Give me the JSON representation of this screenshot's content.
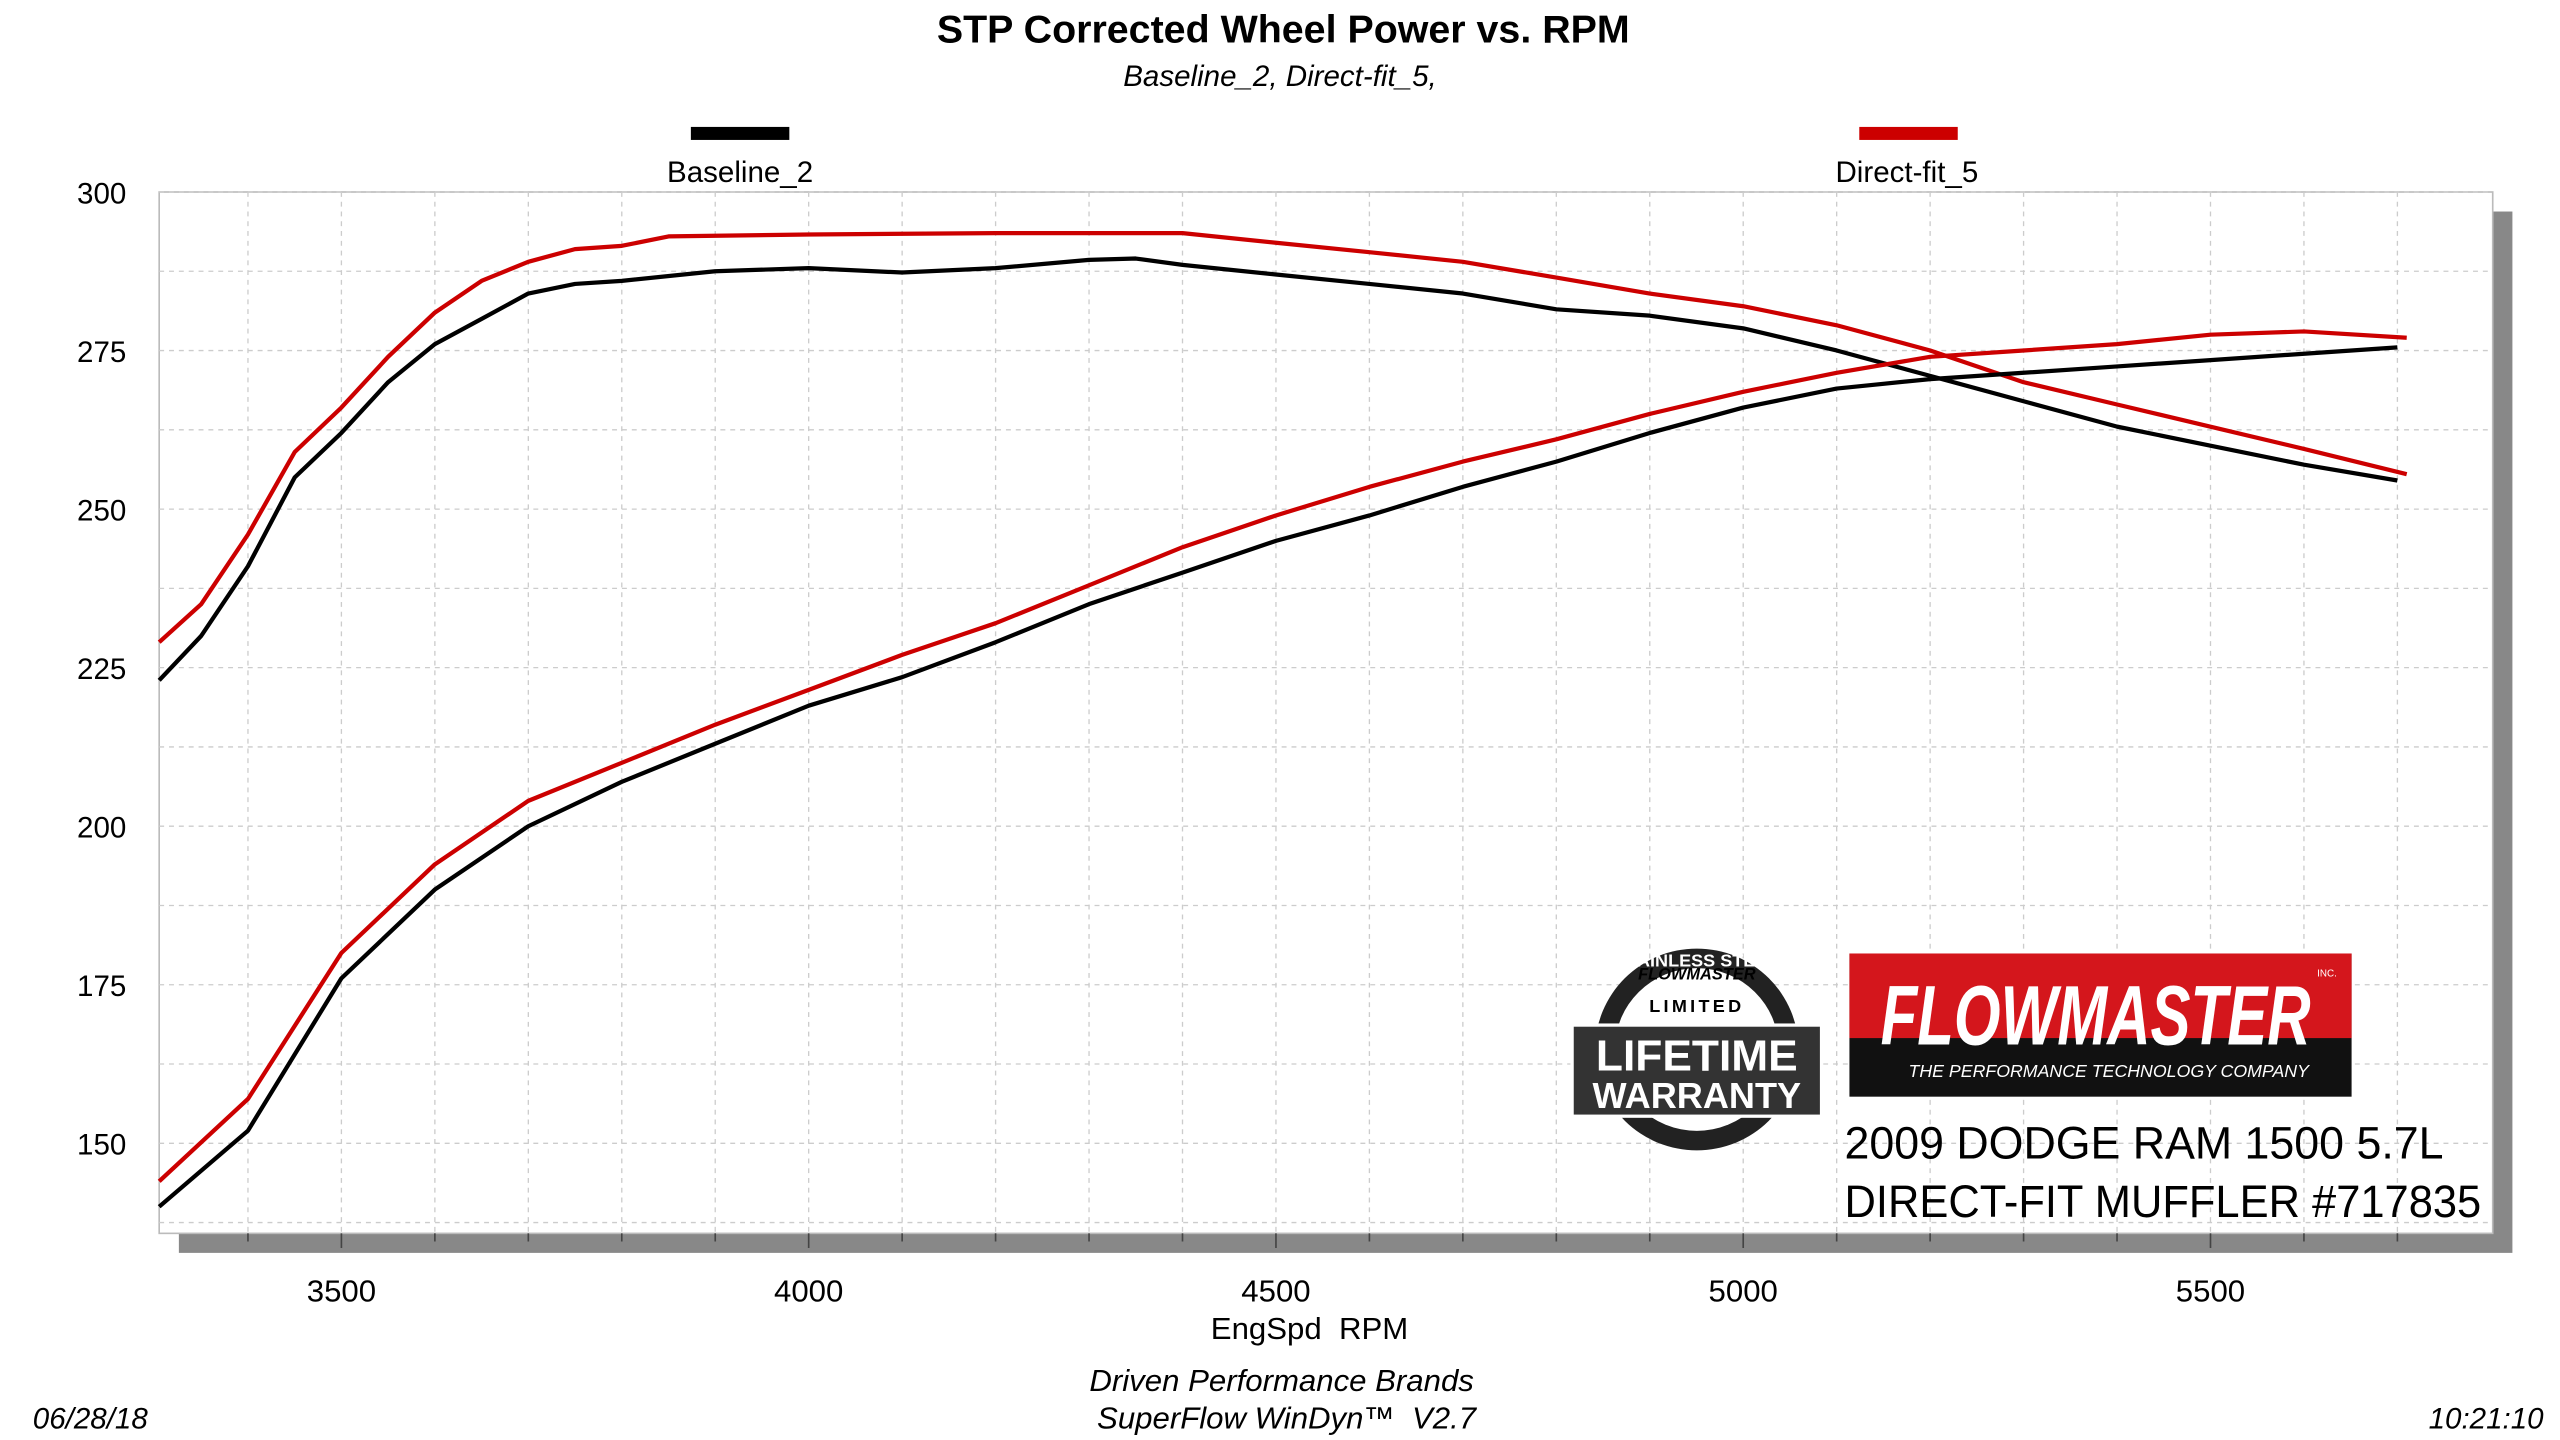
{
  "chart_data": {
    "type": "line",
    "title": "STP Corrected Wheel Power vs. RPM",
    "subtitle": "Baseline_2, Direct-fit_5,",
    "xlabel": "EngSpd  RPM",
    "ylabel": "",
    "xlim": [
      3305,
      5802
    ],
    "ylim": [
      135.8,
      300
    ],
    "grid": true,
    "xticks": [
      3500,
      4000,
      4500,
      5000,
      5500
    ],
    "yticks": [
      150,
      175,
      200,
      225,
      250,
      275,
      300
    ],
    "legend": [
      {
        "name": "Baseline_2",
        "color": "#000000",
        "placement": "top-left"
      },
      {
        "name": "Direct-fit_5",
        "color": "#cc0000",
        "placement": "top-right"
      }
    ],
    "series": [
      {
        "name": "Baseline_2 upper",
        "legend": 0,
        "color": "#000000",
        "x": [
          3305,
          3350,
          3400,
          3450,
          3500,
          3550,
          3600,
          3650,
          3700,
          3750,
          3800,
          3900,
          4000,
          4100,
          4200,
          4300,
          4350,
          4400,
          4500,
          4600,
          4700,
          4800,
          4900,
          5000,
          5100,
          5200,
          5300,
          5400,
          5500,
          5600,
          5700
        ],
        "y": [
          223,
          230,
          241,
          255,
          262,
          270,
          276,
          280,
          284,
          285.5,
          286,
          287.5,
          288,
          287.3,
          288,
          289.3,
          289.5,
          288.5,
          287,
          285.5,
          284,
          281.5,
          280.5,
          278.5,
          275,
          271,
          267,
          263,
          260,
          257,
          254.5
        ]
      },
      {
        "name": "Direct-fit_5 upper",
        "legend": 1,
        "color": "#cc0000",
        "x": [
          3305,
          3350,
          3400,
          3450,
          3500,
          3550,
          3600,
          3650,
          3700,
          3750,
          3800,
          3850,
          4000,
          4200,
          4400,
          4500,
          4600,
          4700,
          4800,
          4900,
          5000,
          5100,
          5200,
          5300,
          5400,
          5500,
          5600,
          5710
        ],
        "y": [
          229,
          235,
          246,
          259,
          266,
          274,
          281,
          286,
          289,
          291,
          291.5,
          293,
          293.3,
          293.5,
          293.5,
          292,
          290.5,
          289,
          286.5,
          284,
          282,
          279,
          275,
          270,
          266.5,
          263,
          259.5,
          255.5
        ]
      },
      {
        "name": "Baseline_2 lower",
        "legend": 0,
        "color": "#000000",
        "x": [
          3305,
          3400,
          3500,
          3600,
          3700,
          3800,
          3900,
          4000,
          4100,
          4200,
          4300,
          4400,
          4500,
          4600,
          4700,
          4800,
          4900,
          5000,
          5100,
          5200,
          5300,
          5400,
          5500,
          5600,
          5700
        ],
        "y": [
          140,
          152,
          176,
          190,
          200,
          207,
          213,
          219,
          223.5,
          229,
          235,
          240,
          245,
          249,
          253.5,
          257.5,
          262,
          266,
          269,
          270.5,
          271.5,
          272.5,
          273.5,
          274.5,
          275.5
        ]
      },
      {
        "name": "Direct-fit_5 lower",
        "legend": 1,
        "color": "#cc0000",
        "x": [
          3305,
          3400,
          3500,
          3600,
          3700,
          3800,
          3900,
          4000,
          4100,
          4200,
          4300,
          4400,
          4500,
          4600,
          4700,
          4800,
          4900,
          5000,
          5100,
          5200,
          5300,
          5400,
          5500,
          5600,
          5710
        ],
        "y": [
          144,
          157,
          180,
          194,
          204,
          210,
          216,
          221.5,
          227,
          232,
          238,
          244,
          249,
          253.5,
          257.5,
          261,
          265,
          268.5,
          271.5,
          274,
          275,
          276,
          277.5,
          278,
          277
        ]
      }
    ]
  },
  "logos": {
    "warranty": [
      "STAINLESS STEEL",
      "FLOWMASTER",
      "LIMITED",
      "LIFETIME",
      "WARRANTY"
    ],
    "brand": "FLOWMASTER",
    "brand_inc": "INC.",
    "brand_tagline": "THE PERFORMANCE TECHNOLOGY COMPANY"
  },
  "vehicle": {
    "line1": "2009 DODGE RAM 1500 5.7L",
    "line2": "DIRECT-FIT MUFFLER #717835"
  },
  "footer": {
    "date": "06/28/18",
    "company": "Driven Performance Brands",
    "software": "SuperFlow WinDyn™  V2.7",
    "time": "10:21:10"
  }
}
